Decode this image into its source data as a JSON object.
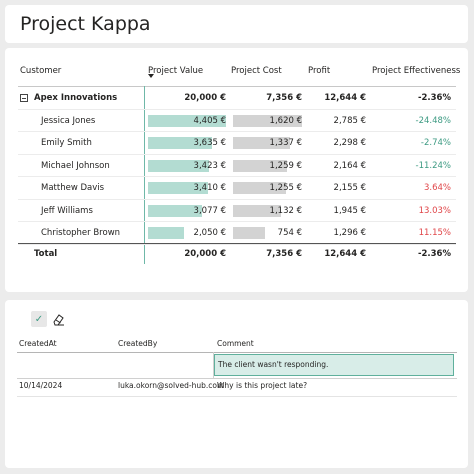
{
  "title": "Project Kappa",
  "matrix": {
    "headers": {
      "customer": "Customer",
      "project_value": "Project Value",
      "project_cost": "Project Cost",
      "profit": "Profit",
      "effectiveness": "Project Effectiveness"
    },
    "group": {
      "name": "Apex Innovations",
      "value": "20,000 €",
      "cost": "7,356 €",
      "profit": "12,644 €",
      "effectiveness": "-2.36%"
    },
    "rows": [
      {
        "name": "Jessica Jones",
        "value": "4,405 €",
        "cost": "1,620 €",
        "profit": "2,785 €",
        "effectiveness": "-24.48%"
      },
      {
        "name": "Emily Smith",
        "value": "3,635 €",
        "cost": "1,337 €",
        "profit": "2,298 €",
        "effectiveness": "-2.74%"
      },
      {
        "name": "Michael Johnson",
        "value": "3,423 €",
        "cost": "1,259 €",
        "profit": "2,164 €",
        "effectiveness": "-11.24%"
      },
      {
        "name": "Matthew Davis",
        "value": "3,410 €",
        "cost": "1,255 €",
        "profit": "2,155 €",
        "effectiveness": "3.64%"
      },
      {
        "name": "Jeff Williams",
        "value": "3,077 €",
        "cost": "1,132 €",
        "profit": "1,945 €",
        "effectiveness": "13.03%"
      },
      {
        "name": "Christopher Brown",
        "value": "2,050 €",
        "cost": "754 €",
        "profit": "1,296 €",
        "effectiveness": "11.15%"
      }
    ],
    "total": {
      "name": "Total",
      "value": "20,000 €",
      "cost": "7,356 €",
      "profit": "12,644 €",
      "effectiveness": "-2.36%"
    }
  },
  "comments_grid": {
    "headers": {
      "created_at": "CreatedAt",
      "created_by": "CreatedBy",
      "comment": "Comment"
    },
    "edit_value": "The client wasn't responding.",
    "rows": [
      {
        "created_at": "10/14/2024",
        "created_by": "luka.okorn@solved-hub.com",
        "comment": "Why is this project late?"
      }
    ]
  },
  "colors": {
    "accent": "#3c9a82",
    "value_bar": "#b3dcd2",
    "cost_bar": "#d3d3d3",
    "negative": "#e04548"
  }
}
